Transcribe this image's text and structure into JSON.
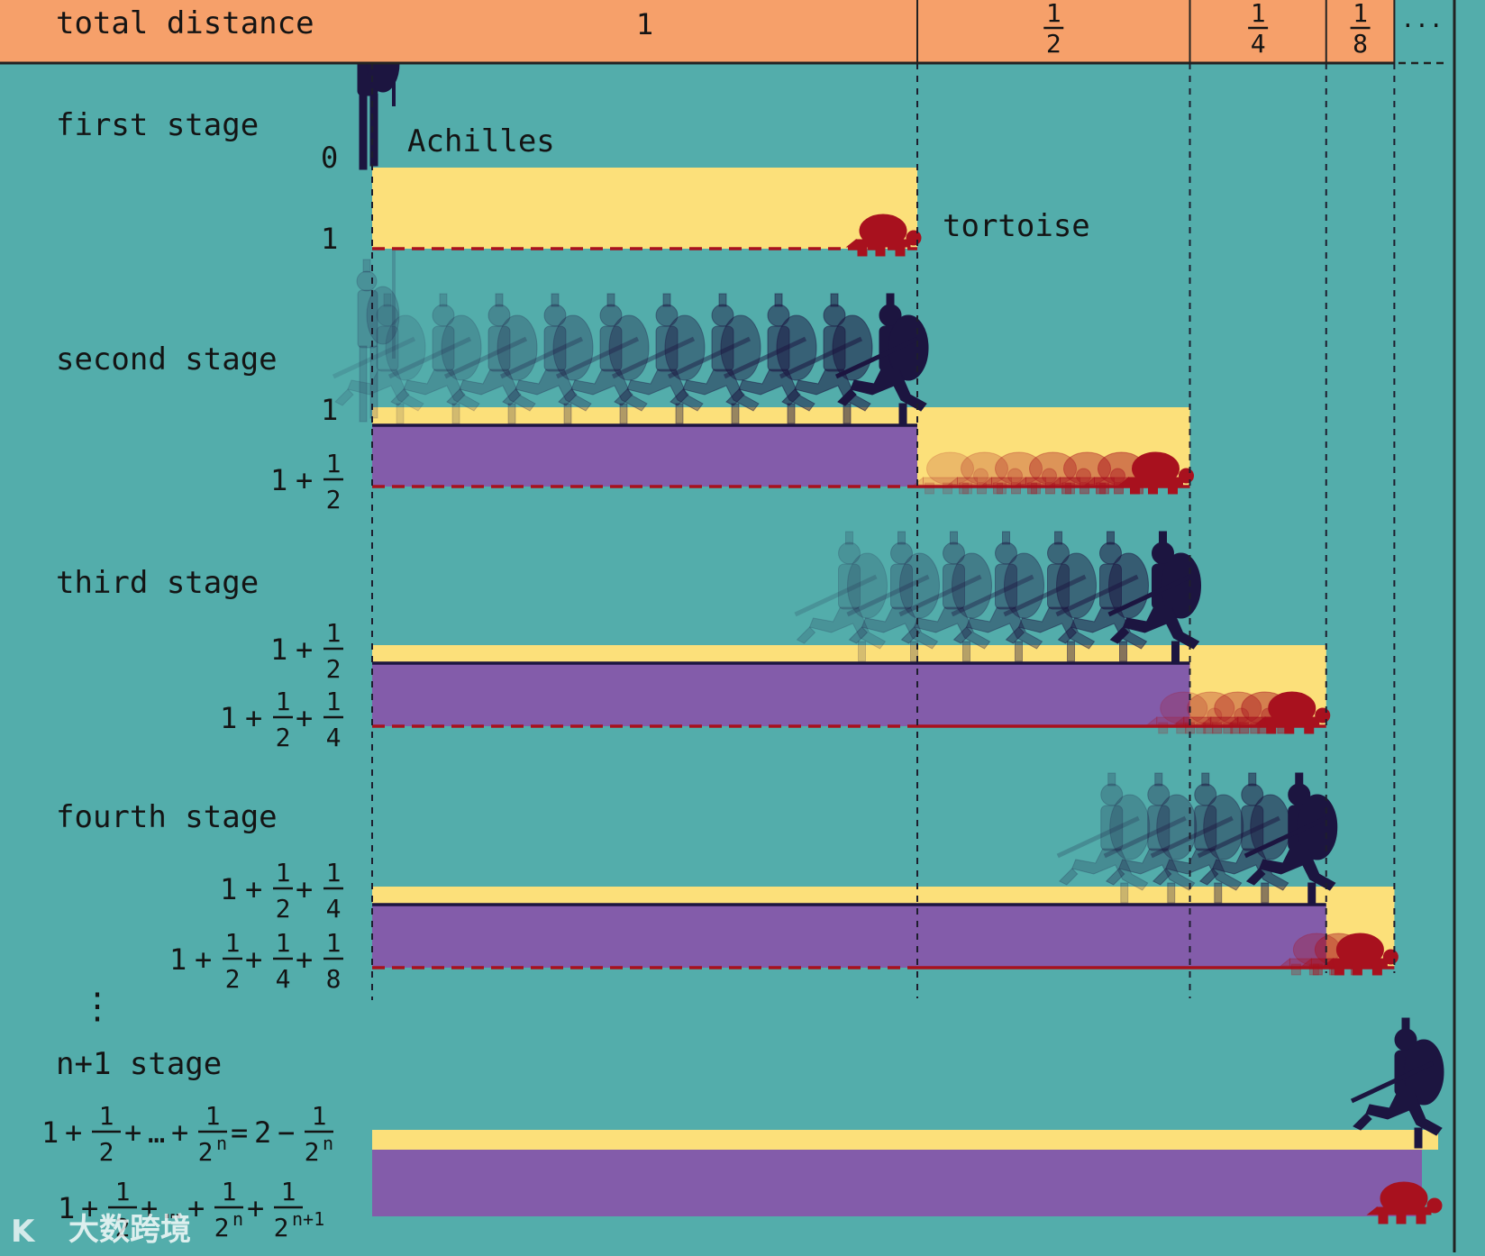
{
  "header": {
    "title": "total distance",
    "segments": [
      "1",
      "1",
      "1",
      "1"
    ],
    "denominators": [
      "",
      "2",
      "4",
      "8"
    ],
    "ellipsis": "..."
  },
  "labels": {
    "achilles": "Achilles",
    "tortoise": "tortoise"
  },
  "stages": [
    {
      "name": "first stage",
      "achilles_pos": "0",
      "tortoise_pos": "1",
      "achilles_reached": 0,
      "tortoise_reached": 1
    },
    {
      "name": "second stage",
      "achilles_pos": "1",
      "tortoise_pos": "1+1/2",
      "achilles_reached": 1,
      "tortoise_reached": 1.5
    },
    {
      "name": "third stage",
      "achilles_pos": "1+1/2",
      "tortoise_pos": "1+1/2+1/4",
      "achilles_reached": 1.5,
      "tortoise_reached": 1.75
    },
    {
      "name": "fourth stage",
      "achilles_pos": "1+1/2+1/4",
      "tortoise_pos": "1+1/2+1/4+1/8",
      "achilles_reached": 1.75,
      "tortoise_reached": 1.875
    },
    {
      "name": "n+1 stage",
      "achilles_pos": "1+1/2+...+1/2^n = 2-1/2^n",
      "tortoise_pos": "1+1/2+...+1/2^n+1/2^(n+1)"
    }
  ],
  "formula_parts": {
    "one": "1",
    "plus": "+",
    "dots": "…",
    "equals": "=",
    "minus": "−",
    "two": "2",
    "half": "2",
    "quarter": "4",
    "eighth": "8",
    "two_n": "2",
    "n": "n",
    "n_plus_1": "n+1"
  },
  "vertical_dots": "⋮",
  "watermark": "大数跨境",
  "colors": {
    "background": "#53ADAB",
    "header": "#F6A06A",
    "yellow": "#FCE07A",
    "purple": "#835CAA",
    "achilles": "#1C1540",
    "tortoise": "#A8111E",
    "dash": "#1E1E2E"
  }
}
